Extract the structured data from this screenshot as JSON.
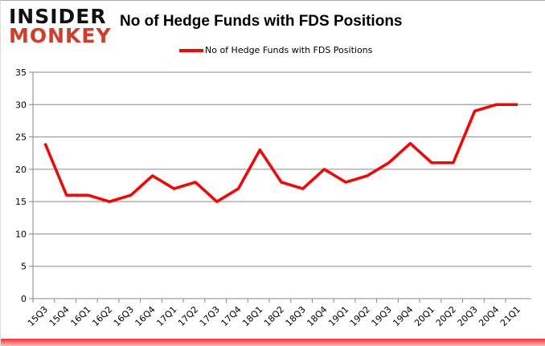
{
  "logo": {
    "line1": "INSIDER",
    "line2": "MONKEY"
  },
  "colors": {
    "series": "#ff0000",
    "grid": "#888888",
    "logo_red": "#d63b2a"
  },
  "chart_data": {
    "type": "line",
    "title": "No of Hedge Funds with FDS Positions",
    "legend_position": "top",
    "grid": true,
    "ylim": [
      0,
      35
    ],
    "yticks": [
      0,
      5,
      10,
      15,
      20,
      25,
      30,
      35
    ],
    "categories": [
      "15Q3",
      "15Q4",
      "16Q1",
      "16Q2",
      "16Q3",
      "16Q4",
      "17Q1",
      "17Q2",
      "17Q3",
      "17Q4",
      "18Q1",
      "18Q2",
      "18Q3",
      "18Q4",
      "19Q1",
      "19Q2",
      "19Q3",
      "19Q4",
      "20Q1",
      "20Q2",
      "20Q3",
      "20Q4",
      "21Q1"
    ],
    "series": [
      {
        "name": "No of Hedge Funds with FDS Positions",
        "values": [
          24,
          16,
          16,
          15,
          16,
          19,
          17,
          18,
          15,
          17,
          23,
          18,
          17,
          20,
          18,
          19,
          21,
          24,
          21,
          21,
          29,
          30,
          30
        ]
      }
    ]
  }
}
